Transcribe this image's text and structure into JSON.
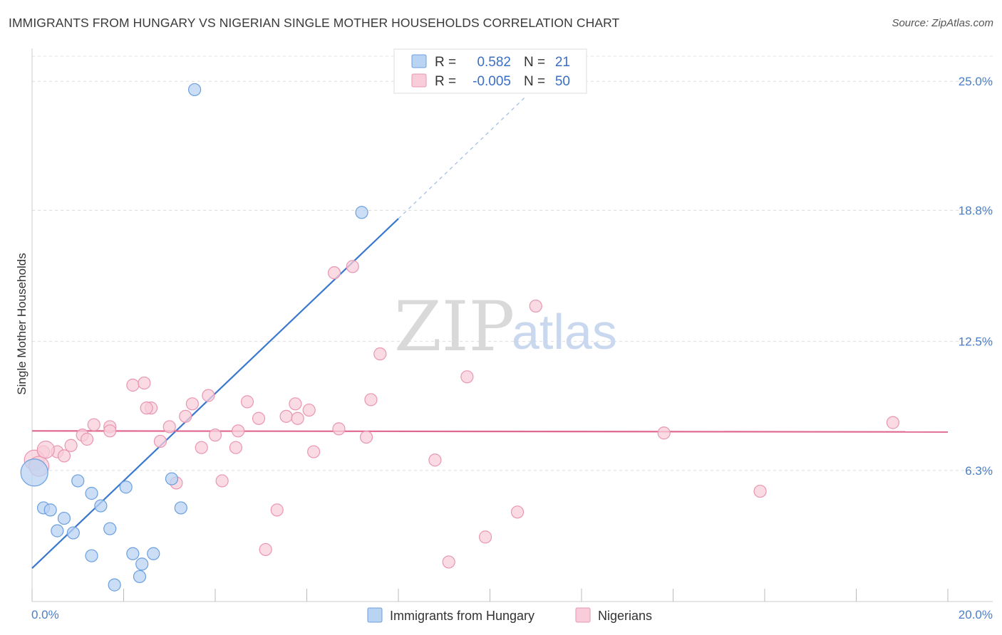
{
  "title": "IMMIGRANTS FROM HUNGARY VS NIGERIAN SINGLE MOTHER HOUSEHOLDS CORRELATION CHART",
  "source": "Source: ZipAtlas.com",
  "watermark": {
    "zip": "ZIP",
    "atlas": "atlas"
  },
  "legend": {
    "rows": [
      {
        "r_label": "R =",
        "r_value": "0.582",
        "n_label": "N =",
        "n_value": "21",
        "color": "#a9c8f0"
      },
      {
        "r_label": "R =",
        "r_value": "-0.005",
        "n_label": "N =",
        "n_value": "50",
        "color": "#f5b8cb"
      }
    ]
  },
  "chart_data": {
    "type": "scatter",
    "title": "IMMIGRANTS FROM HUNGARY VS NIGERIAN SINGLE MOTHER HOUSEHOLDS CORRELATION CHART",
    "xlabel": "",
    "ylabel": "Single Mother Households",
    "xlim": [
      0,
      20
    ],
    "ylim": [
      0,
      26
    ],
    "x_tick_labels": [
      "0.0%",
      "20.0%"
    ],
    "y_ticks": [
      6.3,
      12.5,
      18.8,
      25.0
    ],
    "y_tick_labels": [
      "6.3%",
      "12.5%",
      "18.8%",
      "25.0%"
    ],
    "grid": true,
    "legend_position": "top-center",
    "series": [
      {
        "name": "Immigrants from Hungary",
        "color": "#6a9fe0",
        "fill": "#b9d3f3",
        "points": [
          [
            3.55,
            24.6
          ],
          [
            7.2,
            18.7
          ],
          [
            0.05,
            6.2
          ],
          [
            1.0,
            5.8
          ],
          [
            1.3,
            5.2
          ],
          [
            1.5,
            4.6
          ],
          [
            2.05,
            5.5
          ],
          [
            3.05,
            5.9
          ],
          [
            3.25,
            4.5
          ],
          [
            0.25,
            4.5
          ],
          [
            0.4,
            4.4
          ],
          [
            0.7,
            4.0
          ],
          [
            0.55,
            3.4
          ],
          [
            0.9,
            3.3
          ],
          [
            1.7,
            3.5
          ],
          [
            1.3,
            2.2
          ],
          [
            2.2,
            2.3
          ],
          [
            2.65,
            2.3
          ],
          [
            2.4,
            1.8
          ],
          [
            2.35,
            1.2
          ],
          [
            1.8,
            0.8
          ]
        ]
      },
      {
        "name": "Nigerians",
        "color": "#e996b2",
        "fill": "#f8cdd9",
        "points": [
          [
            6.6,
            15.8
          ],
          [
            7.0,
            16.1
          ],
          [
            11.0,
            14.2
          ],
          [
            7.6,
            11.9
          ],
          [
            9.5,
            10.8
          ],
          [
            2.2,
            10.4
          ],
          [
            2.45,
            10.5
          ],
          [
            3.85,
            9.9
          ],
          [
            4.7,
            9.6
          ],
          [
            5.75,
            9.5
          ],
          [
            7.4,
            9.7
          ],
          [
            2.6,
            9.3
          ],
          [
            3.5,
            9.5
          ],
          [
            3.35,
            8.9
          ],
          [
            4.95,
            8.8
          ],
          [
            5.55,
            8.9
          ],
          [
            5.8,
            8.8
          ],
          [
            6.05,
            9.2
          ],
          [
            1.35,
            8.5
          ],
          [
            1.7,
            8.4
          ],
          [
            3.0,
            8.4
          ],
          [
            6.7,
            8.3
          ],
          [
            13.8,
            8.1
          ],
          [
            18.8,
            8.6
          ],
          [
            1.1,
            8.0
          ],
          [
            1.7,
            8.2
          ],
          [
            4.0,
            8.0
          ],
          [
            4.5,
            8.2
          ],
          [
            1.2,
            7.8
          ],
          [
            2.8,
            7.7
          ],
          [
            7.3,
            7.9
          ],
          [
            0.85,
            7.5
          ],
          [
            3.7,
            7.4
          ],
          [
            4.45,
            7.4
          ],
          [
            6.15,
            7.2
          ],
          [
            0.55,
            7.2
          ],
          [
            0.25,
            7.2
          ],
          [
            0.7,
            7.0
          ],
          [
            0.05,
            6.8
          ],
          [
            8.8,
            6.8
          ],
          [
            4.15,
            5.8
          ],
          [
            3.15,
            5.7
          ],
          [
            15.9,
            5.3
          ],
          [
            5.35,
            4.4
          ],
          [
            10.6,
            4.3
          ],
          [
            9.9,
            3.1
          ],
          [
            5.1,
            2.5
          ],
          [
            9.1,
            1.9
          ],
          [
            0.15,
            6.5
          ],
          [
            2.5,
            9.3
          ]
        ]
      }
    ],
    "trend_lines": [
      {
        "series": "Immigrants from Hungary",
        "from": [
          0.0,
          1.6
        ],
        "to": [
          8.0,
          18.4
        ],
        "extended_to": [
          10.75,
          24.2
        ]
      },
      {
        "series": "Nigerians",
        "from": [
          0.0,
          8.2
        ],
        "to": [
          20.0,
          8.15
        ]
      }
    ]
  },
  "bottom_legend": [
    {
      "label": "Immigrants from Hungary",
      "color": "#b9d3f3",
      "border": "#6a9fe0"
    },
    {
      "label": "Nigerians",
      "color": "#f8cdd9",
      "border": "#e996b2"
    }
  ]
}
